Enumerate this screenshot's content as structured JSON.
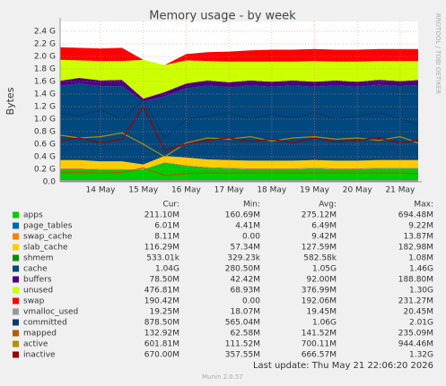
{
  "chart_data": {
    "type": "stacked_area",
    "title": "Memory usage - by week",
    "y_label": "Bytes",
    "side_note": "RRDTOOL / TOBI OETIKER",
    "categories": [
      null,
      null,
      "14 May",
      null,
      "15 May",
      null,
      "16 May",
      null,
      "17 May",
      null,
      "18 May",
      null,
      "19 May",
      null,
      "20 May",
      null,
      "21 May",
      null
    ],
    "ylim": [
      0,
      2.5
    ],
    "yticks": [
      {
        "value": 0,
        "label": "0.0"
      },
      {
        "value": 0.2,
        "label": "0.2 G"
      },
      {
        "value": 0.4,
        "label": "0.4 G"
      },
      {
        "value": 0.6,
        "label": "0.6 G"
      },
      {
        "value": 0.8,
        "label": "0.8 G"
      },
      {
        "value": 1,
        "label": "1.0 G"
      },
      {
        "value": 1.2,
        "label": "1.2 G"
      },
      {
        "value": 1.4,
        "label": "1.4 G"
      },
      {
        "value": 1.6,
        "label": "1.6 G"
      },
      {
        "value": 1.8,
        "label": "1.8 G"
      },
      {
        "value": 2,
        "label": "2.0 G"
      },
      {
        "value": 2.2,
        "label": "2.2 G"
      },
      {
        "value": 2.4,
        "label": "2.4 G"
      }
    ],
    "grid": true,
    "columns": [
      "Cur:",
      "Min:",
      "Avg:",
      "Max:"
    ],
    "series": [
      {
        "name": "apps",
        "color": "#00cc00",
        "stats": [
          "211.10M",
          "160.69M",
          "275.12M",
          "694.48M"
        ],
        "values": [
          0.2,
          0.2,
          0.19,
          0.19,
          0.19,
          0.3,
          0.25,
          0.22,
          0.21,
          0.2,
          0.2,
          0.2,
          0.21,
          0.2,
          0.2,
          0.21,
          0.21,
          0.21
        ]
      },
      {
        "name": "page_tables",
        "color": "#0066b3",
        "stats": [
          "6.01M",
          "4.41M",
          "6.49M",
          "9.22M"
        ],
        "values": [
          0.006,
          0.006,
          0.006,
          0.006,
          0.006,
          0.007,
          0.006,
          0.006,
          0.006,
          0.006,
          0.006,
          0.006,
          0.006,
          0.006,
          0.006,
          0.006,
          0.006,
          0.006
        ]
      },
      {
        "name": "swap_cache",
        "color": "#ff8000",
        "stats": [
          "8.11M",
          "0.00",
          "9.42M",
          "13.87M"
        ],
        "values": [
          0.01,
          0.01,
          0.01,
          0.01,
          0,
          0.005,
          0.01,
          0.01,
          0.01,
          0.01,
          0.01,
          0.01,
          0.01,
          0.01,
          0.01,
          0.01,
          0.01,
          0.01
        ]
      },
      {
        "name": "slab_cache",
        "color": "#ffcc00",
        "stats": [
          "116.29M",
          "57.34M",
          "127.59M",
          "182.98M"
        ],
        "values": [
          0.13,
          0.13,
          0.12,
          0.12,
          0.08,
          0.1,
          0.12,
          0.12,
          0.12,
          0.12,
          0.12,
          0.12,
          0.12,
          0.12,
          0.12,
          0.12,
          0.12,
          0.12
        ]
      },
      {
        "name": "shmem",
        "color": "#008f00",
        "stats": [
          "533.01k",
          "329.23k",
          "582.58k",
          "1.08M"
        ],
        "values": [
          0.001,
          0.001,
          0.001,
          0.001,
          0.001,
          0.001,
          0.001,
          0.001,
          0.001,
          0.001,
          0.001,
          0.001,
          0.001,
          0.001,
          0.001,
          0.001,
          0.001,
          0.001
        ]
      },
      {
        "name": "cache",
        "color": "#00487d",
        "stats": [
          "1.04G",
          "280.50M",
          "1.05G",
          "1.46G"
        ],
        "values": [
          1.18,
          1.22,
          1.2,
          1.2,
          1.0,
          0.95,
          1.1,
          1.18,
          1.16,
          1.2,
          1.18,
          1.2,
          1.17,
          1.2,
          1.18,
          1.2,
          1.18,
          1.2
        ]
      },
      {
        "name": "buffers",
        "color": "#4b0082",
        "stats": [
          "78.50M",
          "42.42M",
          "92.00M",
          "188.80M"
        ],
        "values": [
          0.08,
          0.09,
          0.09,
          0.1,
          0.05,
          0.07,
          0.08,
          0.08,
          0.08,
          0.08,
          0.08,
          0.08,
          0.08,
          0.08,
          0.08,
          0.08,
          0.08,
          0.08
        ]
      },
      {
        "name": "unused",
        "color": "#ccff00",
        "stats": [
          "476.81M",
          "68.93M",
          "376.99M",
          "1.30G"
        ],
        "values": [
          0.34,
          0.28,
          0.31,
          0.3,
          0.62,
          0.43,
          0.37,
          0.31,
          0.33,
          0.3,
          0.32,
          0.3,
          0.33,
          0.3,
          0.32,
          0.3,
          0.32,
          0.3
        ]
      },
      {
        "name": "swap",
        "color": "#ff0000",
        "stats": [
          "190.42M",
          "0.00",
          "192.06M",
          "231.27M"
        ],
        "values": [
          0.2,
          0.2,
          0.2,
          0.21,
          0,
          0.0,
          0.1,
          0.14,
          0.16,
          0.18,
          0.19,
          0.19,
          0.19,
          0.19,
          0.19,
          0.19,
          0.19,
          0.19
        ]
      }
    ],
    "line_series": [
      {
        "name": "vmalloc_used",
        "color": "#999999",
        "stats": [
          "19.25M",
          "18.07M",
          "19.45M",
          "20.45M"
        ],
        "values": [
          0.02,
          0.02,
          0.02,
          0.02,
          0.02,
          0.02,
          0.02,
          0.02,
          0.02,
          0.02,
          0.02,
          0.02,
          0.02,
          0.02,
          0.02,
          0.02,
          0.02,
          0.02
        ]
      },
      {
        "name": "committed",
        "color": "#0a3a6a",
        "stats": [
          "878.50M",
          "565.04M",
          "1.06G",
          "2.01G"
        ],
        "values": [
          1.1,
          1.05,
          1.15,
          1.0,
          1.3,
          0.7,
          1.0,
          1.05,
          1.1,
          1.0,
          1.08,
          1.02,
          1.1,
          1.0,
          1.05,
          1.1,
          1.0,
          0.9
        ]
      },
      {
        "name": "mapped",
        "color": "#b35a00",
        "stats": [
          "132.92M",
          "62.58M",
          "141.52M",
          "235.09M"
        ],
        "values": [
          0.14,
          0.15,
          0.14,
          0.15,
          0.22,
          0.1,
          0.13,
          0.14,
          0.14,
          0.14,
          0.14,
          0.14,
          0.14,
          0.14,
          0.14,
          0.14,
          0.14,
          0.13
        ]
      },
      {
        "name": "active",
        "color": "#b38f00",
        "stats": [
          "601.81M",
          "111.52M",
          "700.11M",
          "944.46M"
        ],
        "values": [
          0.75,
          0.7,
          0.72,
          0.78,
          0.6,
          0.4,
          0.62,
          0.7,
          0.68,
          0.72,
          0.65,
          0.7,
          0.72,
          0.68,
          0.7,
          0.66,
          0.72,
          0.6
        ]
      },
      {
        "name": "inactive",
        "color": "#990000",
        "stats": [
          "670.00M",
          "357.55M",
          "666.57M",
          "1.32G"
        ],
        "values": [
          0.65,
          0.7,
          0.62,
          0.68,
          1.2,
          0.5,
          0.6,
          0.66,
          0.7,
          0.64,
          0.68,
          0.62,
          0.7,
          0.64,
          0.66,
          0.7,
          0.62,
          0.67
        ]
      }
    ],
    "last_update": "Last update: Thu May 21 22:06:20 2026",
    "footer": "Munin 2.0.57"
  }
}
